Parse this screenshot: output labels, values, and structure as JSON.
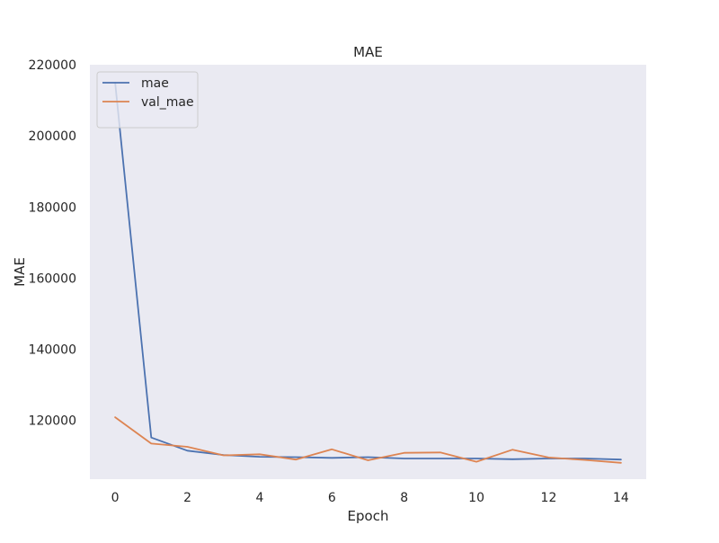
{
  "chart_data": {
    "type": "line",
    "title": "MAE",
    "xlabel": "Epoch",
    "ylabel": "MAE",
    "xlim": [
      -0.7,
      14.7
    ],
    "ylim": [
      103500,
      220000
    ],
    "grid": false,
    "legend_position": "top-left",
    "x": [
      0,
      1,
      2,
      3,
      4,
      5,
      6,
      7,
      8,
      9,
      10,
      11,
      12,
      13,
      14
    ],
    "x_ticks": [
      0,
      2,
      4,
      6,
      8,
      10,
      12,
      14
    ],
    "y_ticks": [
      120000,
      140000,
      160000,
      180000,
      200000,
      220000
    ],
    "x_tick_labels": [
      "0",
      "2",
      "4",
      "6",
      "8",
      "10",
      "12",
      "14"
    ],
    "y_tick_labels": [
      "120000",
      "140000",
      "160000",
      "180000",
      "200000",
      "220000"
    ],
    "series": [
      {
        "name": "mae",
        "color": "#4c72b0",
        "values": [
          215000,
          115200,
          111500,
          110300,
          109800,
          109700,
          109500,
          109700,
          109300,
          109300,
          109300,
          109100,
          109300,
          109300,
          109000
        ]
      },
      {
        "name": "val_mae",
        "color": "#dd8452",
        "values": [
          120900,
          113500,
          112600,
          110200,
          110500,
          109000,
          111900,
          108800,
          110900,
          111000,
          108400,
          111800,
          109600,
          108900,
          108100
        ]
      }
    ]
  }
}
